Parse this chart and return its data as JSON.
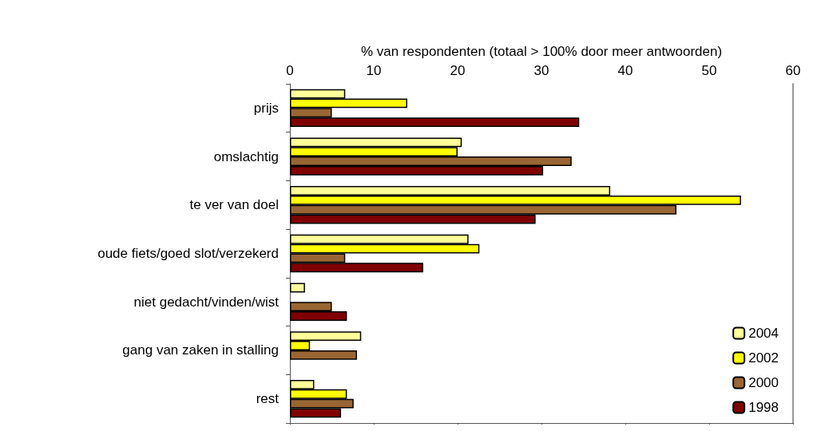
{
  "chart_data": {
    "type": "bar",
    "orientation": "horizontal",
    "xlabel": "% van respondenten (totaal > 100% door meer antwoorden)",
    "categories": [
      "prijs",
      "omslachtig",
      "te ver van doel",
      "oude fiets/goed slot/verzekerd",
      "niet gedacht/vinden/wist",
      "gang van zaken in stalling",
      "rest"
    ],
    "series": [
      {
        "name": "2004",
        "color": "#ffff99",
        "values": [
          6.6,
          20.5,
          38.2,
          21.3,
          1.8,
          8.5,
          2.9
        ]
      },
      {
        "name": "2002",
        "color": "#ffff00",
        "values": [
          14.0,
          20.0,
          53.8,
          22.6,
          null,
          2.4,
          6.8
        ]
      },
      {
        "name": "2000",
        "color": "#996633",
        "values": [
          5.0,
          33.6,
          46.1,
          6.6,
          5.0,
          8.0,
          7.6
        ]
      },
      {
        "name": "1998",
        "color": "#800000",
        "values": [
          34.5,
          30.2,
          29.3,
          15.9,
          6.8,
          null,
          6.1
        ]
      }
    ],
    "xlim": [
      0,
      60
    ],
    "xticks": [
      0,
      10,
      20,
      30,
      40,
      50,
      60
    ],
    "grid": false,
    "legend": "bottom right"
  }
}
